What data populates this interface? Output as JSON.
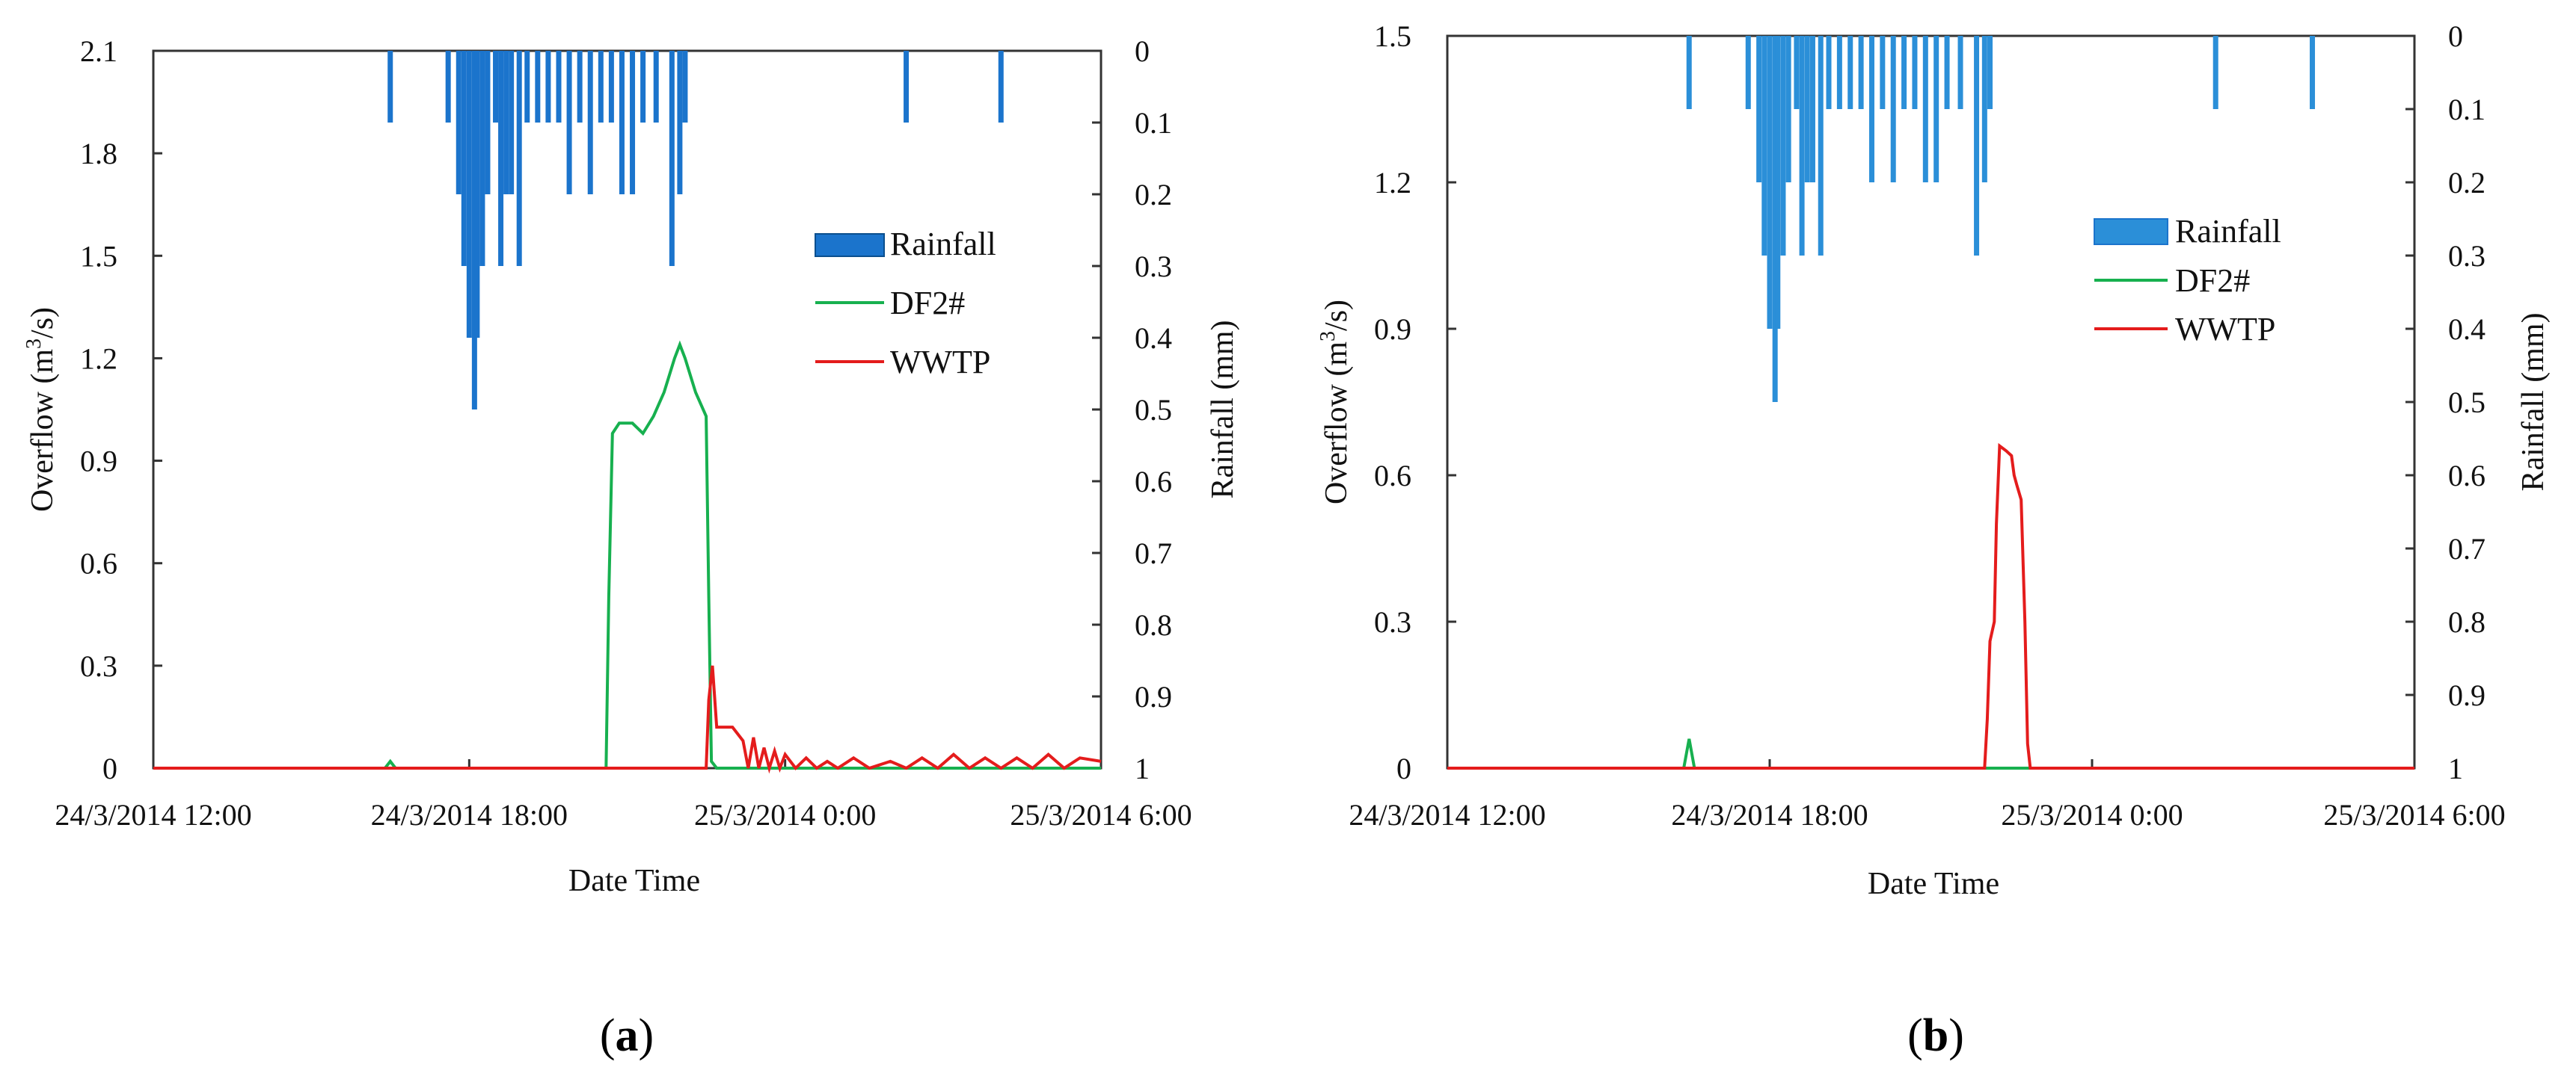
{
  "colors": {
    "rainfall": "#1b74cc",
    "rainfall_legend": "#2b8fd8",
    "df2": "#17b04f",
    "wwtp": "#e41c1c",
    "axis": "#333333"
  },
  "chart_data": [
    {
      "type": "bar+line",
      "panel_label": "(a)",
      "panel_letter": "a",
      "xlabel": "Date Time",
      "ylabel_left": "Overflow (m3/s)",
      "ylabel_left_main": "Overflow (m",
      "ylabel_left_sup": "3",
      "ylabel_left_tail": "/s)",
      "ylabel_right": "Rainfall (mm)",
      "x_range_hours": [
        0,
        18
      ],
      "x_ticks": [
        {
          "h": 0,
          "label": "24/3/2014 12:00"
        },
        {
          "h": 6,
          "label": "24/3/2014 18:00"
        },
        {
          "h": 12,
          "label": "25/3/2014 0:00"
        },
        {
          "h": 18,
          "label": "25/3/2014 6:00"
        }
      ],
      "ylim_left": [
        0,
        2.1
      ],
      "y_ticks_left": [
        "0",
        "0.3",
        "0.6",
        "0.9",
        "1.2",
        "1.5",
        "1.8",
        "2.1"
      ],
      "ylim_right_inverted": [
        0,
        1
      ],
      "y_ticks_right": [
        "0",
        "0.1",
        "0.2",
        "0.3",
        "0.4",
        "0.5",
        "0.6",
        "0.7",
        "0.8",
        "0.9",
        "1"
      ],
      "legend": [
        "Rainfall",
        "DF2#",
        "WWTP"
      ],
      "rainfall": [
        [
          4.5,
          0.1
        ],
        [
          5.6,
          0.1
        ],
        [
          5.8,
          0.2
        ],
        [
          5.9,
          0.3
        ],
        [
          6.0,
          0.4
        ],
        [
          6.1,
          0.5
        ],
        [
          6.15,
          0.4
        ],
        [
          6.25,
          0.3
        ],
        [
          6.35,
          0.2
        ],
        [
          6.5,
          0.1
        ],
        [
          6.6,
          0.3
        ],
        [
          6.7,
          0.2
        ],
        [
          6.8,
          0.2
        ],
        [
          6.95,
          0.3
        ],
        [
          7.1,
          0.1
        ],
        [
          7.3,
          0.1
        ],
        [
          7.5,
          0.1
        ],
        [
          7.7,
          0.1
        ],
        [
          7.9,
          0.2
        ],
        [
          8.1,
          0.1
        ],
        [
          8.3,
          0.2
        ],
        [
          8.5,
          0.1
        ],
        [
          8.7,
          0.1
        ],
        [
          8.9,
          0.2
        ],
        [
          9.1,
          0.2
        ],
        [
          9.3,
          0.1
        ],
        [
          9.55,
          0.1
        ],
        [
          9.85,
          0.3
        ],
        [
          10.0,
          0.2
        ],
        [
          10.1,
          0.1
        ],
        [
          14.3,
          0.1
        ],
        [
          16.1,
          0.1
        ]
      ],
      "df2": [
        [
          0,
          0
        ],
        [
          4.4,
          0
        ],
        [
          4.5,
          0.02
        ],
        [
          4.6,
          0
        ],
        [
          8.6,
          0
        ],
        [
          8.65,
          0.5
        ],
        [
          8.72,
          0.98
        ],
        [
          8.85,
          1.01
        ],
        [
          9.1,
          1.01
        ],
        [
          9.3,
          0.98
        ],
        [
          9.5,
          1.03
        ],
        [
          9.7,
          1.1
        ],
        [
          9.9,
          1.2
        ],
        [
          10.0,
          1.24
        ],
        [
          10.1,
          1.2
        ],
        [
          10.3,
          1.1
        ],
        [
          10.5,
          1.03
        ],
        [
          10.55,
          0.5
        ],
        [
          10.6,
          0.02
        ],
        [
          10.7,
          0
        ],
        [
          18,
          0
        ]
      ],
      "wwtp": [
        [
          0,
          0
        ],
        [
          10.5,
          0
        ],
        [
          10.55,
          0.2
        ],
        [
          10.62,
          0.3
        ],
        [
          10.7,
          0.12
        ],
        [
          11.0,
          0.12
        ],
        [
          11.2,
          0.08
        ],
        [
          11.3,
          0.0
        ],
        [
          11.4,
          0.09
        ],
        [
          11.5,
          0.0
        ],
        [
          11.6,
          0.06
        ],
        [
          11.7,
          0.0
        ],
        [
          11.8,
          0.05
        ],
        [
          11.9,
          0.0
        ],
        [
          12.0,
          0.04
        ],
        [
          12.2,
          0.0
        ],
        [
          12.4,
          0.03
        ],
        [
          12.6,
          0.0
        ],
        [
          12.8,
          0.02
        ],
        [
          13.0,
          0.0
        ],
        [
          13.3,
          0.03
        ],
        [
          13.6,
          0.0
        ],
        [
          14.0,
          0.02
        ],
        [
          14.3,
          0.0
        ],
        [
          14.6,
          0.03
        ],
        [
          14.9,
          0.0
        ],
        [
          15.2,
          0.04
        ],
        [
          15.5,
          0.0
        ],
        [
          15.8,
          0.03
        ],
        [
          16.1,
          0.0
        ],
        [
          16.4,
          0.03
        ],
        [
          16.7,
          0.0
        ],
        [
          17.0,
          0.04
        ],
        [
          17.3,
          0.0
        ],
        [
          17.6,
          0.03
        ],
        [
          18,
          0.02
        ]
      ]
    },
    {
      "type": "bar+line",
      "panel_label": "(b)",
      "panel_letter": "b",
      "xlabel": "Date Time",
      "ylabel_left": "Overflow (m3/s)",
      "ylabel_left_main": "Overflow (m",
      "ylabel_left_sup": "3",
      "ylabel_left_tail": "/s)",
      "ylabel_right": "Rainfall (mm)",
      "x_range_hours": [
        0,
        18
      ],
      "x_ticks": [
        {
          "h": 0,
          "label": "24/3/2014 12:00"
        },
        {
          "h": 6,
          "label": "24/3/2014 18:00"
        },
        {
          "h": 12,
          "label": "25/3/2014 0:00"
        },
        {
          "h": 18,
          "label": "25/3/2014 6:00"
        }
      ],
      "ylim_left": [
        0,
        1.5
      ],
      "y_ticks_left": [
        "0",
        "0.3",
        "0.6",
        "0.9",
        "1.2",
        "1.5"
      ],
      "ylim_right_inverted": [
        0,
        1
      ],
      "y_ticks_right": [
        "0",
        "0.1",
        "0.2",
        "0.3",
        "0.4",
        "0.5",
        "0.6",
        "0.7",
        "0.8",
        "0.9",
        "1"
      ],
      "legend": [
        "Rainfall",
        "DF2#",
        "WWTP"
      ],
      "rainfall": [
        [
          4.5,
          0.1
        ],
        [
          5.6,
          0.1
        ],
        [
          5.8,
          0.2
        ],
        [
          5.9,
          0.3
        ],
        [
          6.0,
          0.4
        ],
        [
          6.1,
          0.5
        ],
        [
          6.15,
          0.4
        ],
        [
          6.25,
          0.3
        ],
        [
          6.35,
          0.2
        ],
        [
          6.5,
          0.1
        ],
        [
          6.6,
          0.3
        ],
        [
          6.7,
          0.2
        ],
        [
          6.8,
          0.2
        ],
        [
          6.95,
          0.3
        ],
        [
          7.1,
          0.1
        ],
        [
          7.3,
          0.1
        ],
        [
          7.5,
          0.1
        ],
        [
          7.7,
          0.1
        ],
        [
          7.9,
          0.2
        ],
        [
          8.1,
          0.1
        ],
        [
          8.3,
          0.2
        ],
        [
          8.5,
          0.1
        ],
        [
          8.7,
          0.1
        ],
        [
          8.9,
          0.2
        ],
        [
          9.1,
          0.2
        ],
        [
          9.3,
          0.1
        ],
        [
          9.55,
          0.1
        ],
        [
          9.85,
          0.3
        ],
        [
          10.0,
          0.2
        ],
        [
          10.1,
          0.1
        ],
        [
          14.3,
          0.1
        ],
        [
          16.1,
          0.1
        ]
      ],
      "df2": [
        [
          0,
          0
        ],
        [
          4.4,
          0
        ],
        [
          4.5,
          0.06
        ],
        [
          4.6,
          0
        ],
        [
          18,
          0
        ]
      ],
      "wwtp": [
        [
          0,
          0
        ],
        [
          10.0,
          0
        ],
        [
          10.05,
          0.1
        ],
        [
          10.1,
          0.26
        ],
        [
          10.18,
          0.3
        ],
        [
          10.22,
          0.5
        ],
        [
          10.28,
          0.66
        ],
        [
          10.4,
          0.65
        ],
        [
          10.5,
          0.64
        ],
        [
          10.55,
          0.6
        ],
        [
          10.6,
          0.58
        ],
        [
          10.68,
          0.55
        ],
        [
          10.75,
          0.3
        ],
        [
          10.8,
          0.05
        ],
        [
          10.85,
          0
        ],
        [
          18,
          0
        ]
      ]
    }
  ]
}
